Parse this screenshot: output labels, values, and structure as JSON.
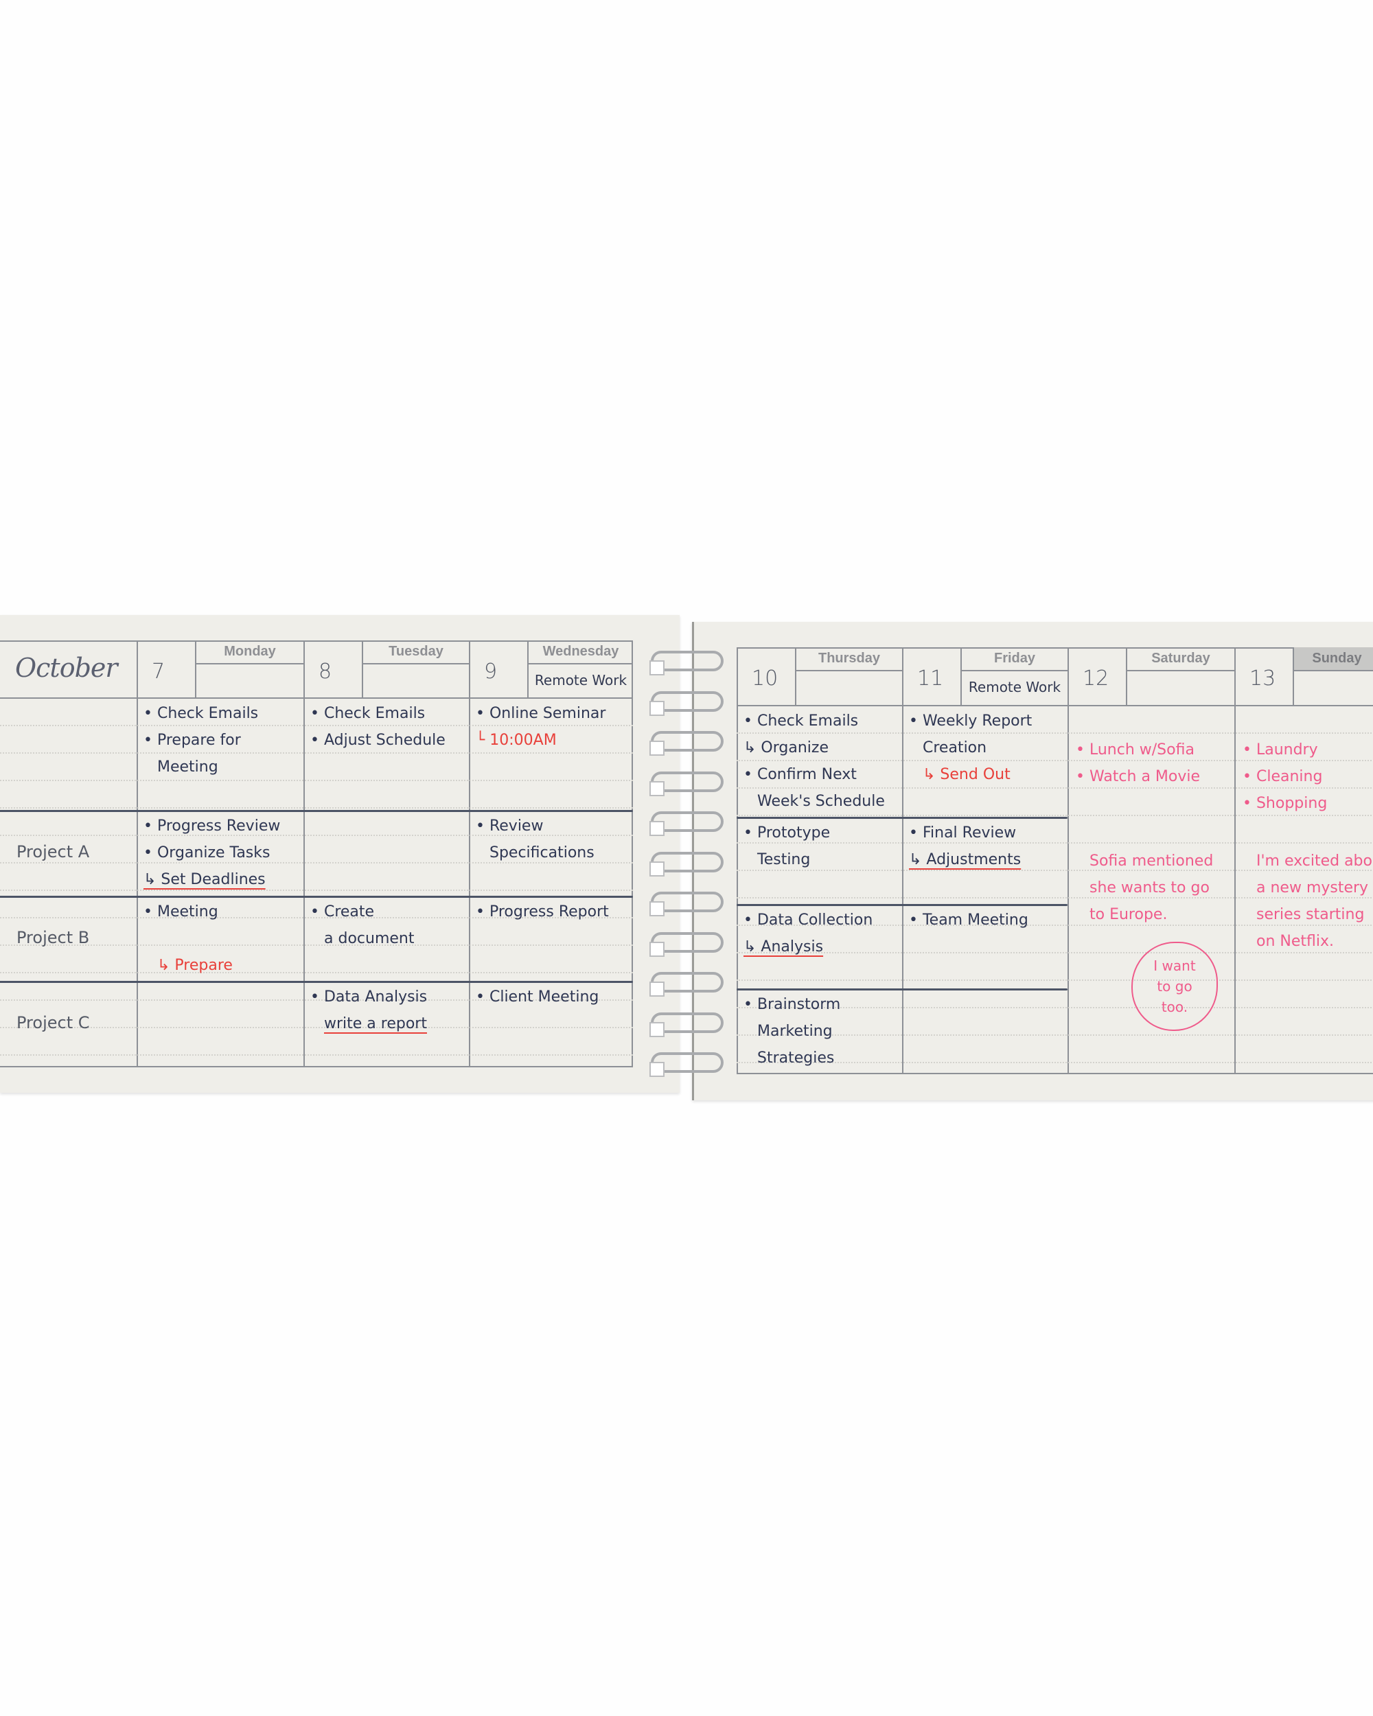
{
  "colors": {
    "ink": "#2f3753",
    "red": "#e8403a",
    "pink": "#ef5b8b",
    "paper": "#efeee9"
  },
  "left_page": {
    "month": "October",
    "row_labels": [
      "",
      "Project A",
      "Project B",
      "Project C"
    ],
    "days": [
      {
        "date": "7",
        "weekday": "Monday",
        "note": "",
        "cells": [
          [
            {
              "t": "• Check Emails",
              "c": "ink"
            },
            {
              "t": "• Prepare for",
              "c": "ink"
            },
            {
              "t": "Meeting",
              "c": "ink"
            }
          ],
          [
            {
              "t": "• Progress Review",
              "c": "ink"
            },
            {
              "t": "• Organize Tasks",
              "c": "ink"
            },
            {
              "t": "↳ Set Deadlines",
              "c": "ink",
              "u": true
            }
          ],
          [
            {
              "t": "• Meeting",
              "c": "ink"
            },
            {
              "t": "",
              "c": "ink"
            },
            {
              "t": "  ↳ Prepare",
              "c": "red"
            }
          ],
          []
        ]
      },
      {
        "date": "8",
        "weekday": "Tuesday",
        "note": "",
        "cells": [
          [
            {
              "t": "• Check Emails",
              "c": "ink"
            },
            {
              "t": "• Adjust Schedule",
              "c": "ink"
            }
          ],
          [],
          [
            {
              "t": "• Create",
              "c": "ink"
            },
            {
              "t": "a document",
              "c": "ink"
            }
          ],
          [
            {
              "t": "• Data Analysis",
              "c": "ink"
            },
            {
              "t": "write a report",
              "c": "ink",
              "u": true
            }
          ]
        ]
      },
      {
        "date": "9",
        "weekday": "Wednesday",
        "note": "Remote Work",
        "cells": [
          [
            {
              "t": "• Online Seminar",
              "c": "ink"
            },
            {
              "t": "└ 10:00AM",
              "c": "red"
            }
          ],
          [
            {
              "t": "• Review",
              "c": "ink"
            },
            {
              "t": "Specifications",
              "c": "ink"
            }
          ],
          [
            {
              "t": "• Progress Report",
              "c": "ink"
            }
          ],
          [
            {
              "t": "• Client Meeting",
              "c": "ink"
            }
          ]
        ]
      }
    ]
  },
  "right_page": {
    "days": [
      {
        "date": "10",
        "weekday": "Thursday",
        "note": "",
        "cells": [
          [
            {
              "t": "• Check Emails",
              "c": "ink"
            },
            {
              "t": "↳ Organize",
              "c": "ink"
            },
            {
              "t": "• Confirm Next",
              "c": "ink"
            },
            {
              "t": "Week's Schedule",
              "c": "ink"
            }
          ],
          [
            {
              "t": "• Prototype",
              "c": "ink"
            },
            {
              "t": "Testing",
              "c": "ink"
            }
          ],
          [
            {
              "t": "• Data Collection",
              "c": "ink"
            },
            {
              "t": "↳ Analysis",
              "c": "ink",
              "u": true
            }
          ],
          [
            {
              "t": "• Brainstorm",
              "c": "ink"
            },
            {
              "t": "Marketing",
              "c": "ink"
            },
            {
              "t": "Strategies",
              "c": "ink"
            }
          ]
        ]
      },
      {
        "date": "11",
        "weekday": "Friday",
        "note": "Remote Work",
        "cells": [
          [
            {
              "t": "• Weekly Report",
              "c": "ink"
            },
            {
              "t": "Creation",
              "c": "ink"
            },
            {
              "t": "  ↳ Send Out",
              "c": "red"
            }
          ],
          [
            {
              "t": "• Final Review",
              "c": "ink"
            },
            {
              "t": "↳ Adjustments",
              "c": "ink",
              "u": true
            }
          ],
          [
            {
              "t": "• Team Meeting",
              "c": "ink"
            }
          ],
          []
        ]
      }
    ],
    "weekend": [
      {
        "date": "12",
        "weekday": "Saturday",
        "note": "",
        "groups": [
          [
            {
              "t": "• Lunch w/Sofia",
              "c": "pink"
            },
            {
              "t": "• Watch a Movie",
              "c": "pink"
            }
          ],
          [
            {
              "t": "Sofia mentioned",
              "c": "pink"
            },
            {
              "t": "she wants to go",
              "c": "pink"
            },
            {
              "t": "to Europe.",
              "c": "pink"
            }
          ]
        ]
      },
      {
        "date": "13",
        "weekday": "Sunday",
        "note": "",
        "groups": [
          [
            {
              "t": "• Laundry",
              "c": "pink"
            },
            {
              "t": "• Cleaning",
              "c": "pink"
            },
            {
              "t": "• Shopping",
              "c": "pink"
            }
          ],
          [
            {
              "t": "I'm excited about",
              "c": "pink"
            },
            {
              "t": "a new mystery",
              "c": "pink"
            },
            {
              "t": "series starting",
              "c": "pink"
            },
            {
              "t": "on Netflix.",
              "c": "pink"
            }
          ]
        ]
      }
    ],
    "cloud_lines": [
      "I want",
      "to go",
      "too."
    ]
  }
}
